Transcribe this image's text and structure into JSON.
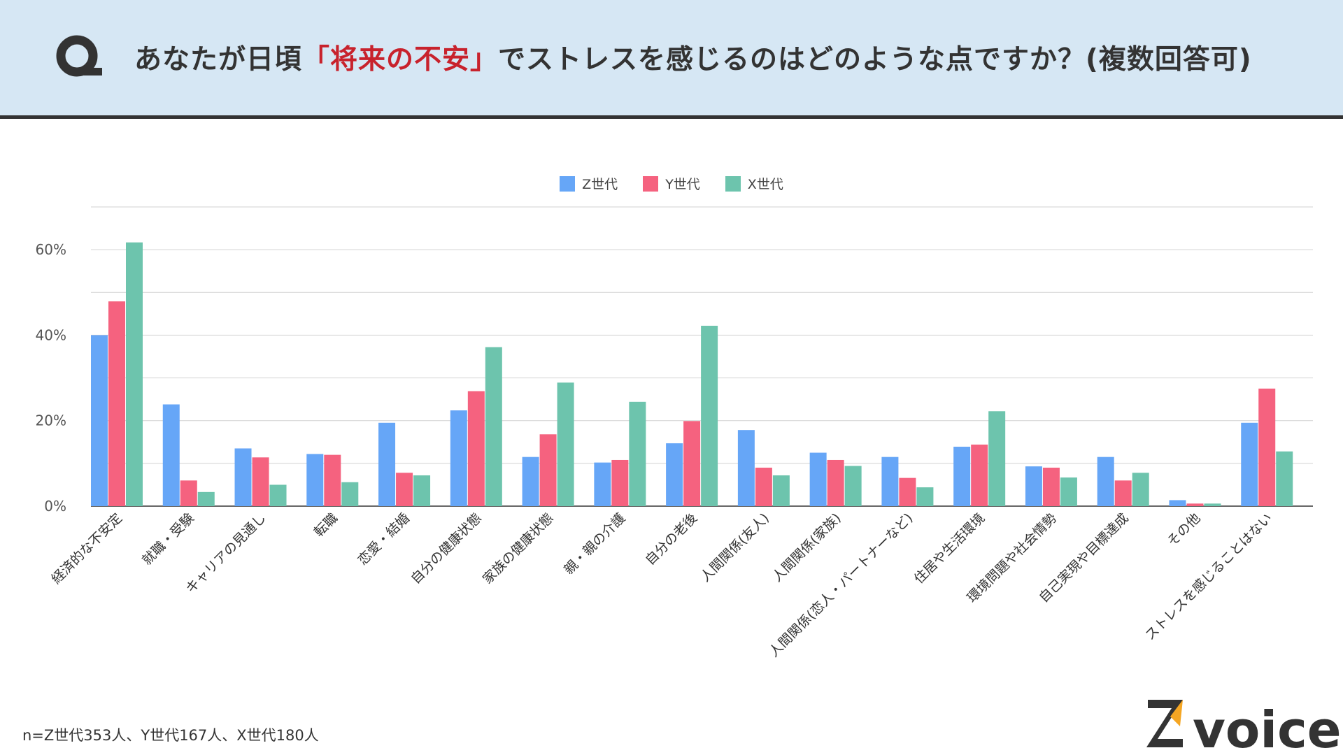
{
  "header": {
    "q_letter": "Q",
    "title_before": "あなたが日頃",
    "title_highlight": "「将来の不安」",
    "title_after": "でストレスを感じるのはどのような点ですか？(複数回答可)"
  },
  "colors": {
    "z": "#66a6f7",
    "y": "#f5627f",
    "x": "#6dc4ad",
    "grid": "#d2d2d2",
    "highlight": "#c8222c",
    "header_bg": "#d6e7f4"
  },
  "chart_data": {
    "type": "bar",
    "categories": [
      "経済的な不安定",
      "就職・受験",
      "キャリアの見通し",
      "転職",
      "恋愛・結婚",
      "自分の健康状態",
      "家族の健康状態",
      "親・親の介護",
      "自分の老後",
      "人間関係(友人)",
      "人間関係(家族)",
      "人間関係(恋人・パートナーなど)",
      "住居や生活環境",
      "環境問題や社会情勢",
      "自己実現や目標達成",
      "その他",
      "ストレスを感じることはない"
    ],
    "series": [
      {
        "name": "Z世代",
        "values": [
          40,
          23.8,
          13.5,
          12.2,
          19.5,
          22.4,
          11.5,
          10.2,
          14.7,
          17.8,
          12.5,
          11.5,
          13.9,
          9.3,
          11.5,
          1.4,
          19.5
        ]
      },
      {
        "name": "Y世代",
        "values": [
          47.9,
          6.0,
          11.4,
          12.0,
          7.8,
          26.9,
          16.8,
          10.8,
          19.9,
          9.0,
          10.8,
          6.6,
          14.4,
          9.0,
          6.0,
          0.6,
          27.5
        ]
      },
      {
        "name": "X世代",
        "values": [
          61.7,
          3.3,
          5.0,
          5.6,
          7.2,
          37.2,
          28.9,
          24.4,
          42.2,
          7.2,
          9.4,
          4.4,
          22.2,
          6.7,
          7.8,
          0.6,
          12.8
        ]
      }
    ],
    "y_ticks": [
      "0%",
      "20%",
      "40%",
      "60%"
    ],
    "ylim": [
      0,
      70
    ],
    "grid": true,
    "legend_position": "top-center"
  },
  "footnote": "n=Z世代353人、Y世代167人、X世代180人",
  "logo": {
    "letter": "Z",
    "word": "voice"
  }
}
